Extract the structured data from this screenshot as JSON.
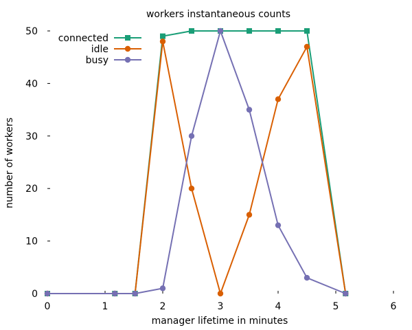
{
  "chart_data": {
    "type": "line",
    "title": "workers instantaneous counts",
    "xlabel": "manager lifetime in minutes",
    "ylabel": "number of workers",
    "xlim": [
      0,
      6
    ],
    "ylim": [
      0,
      50
    ],
    "xticks": [
      0,
      1,
      2,
      3,
      4,
      5,
      6
    ],
    "yticks": [
      0,
      10,
      20,
      30,
      40,
      50
    ],
    "grid": false,
    "legend_position": "top-left",
    "series": [
      {
        "name": "connected",
        "color": "#1a9e77",
        "marker": "square",
        "x": [
          0,
          1.17,
          1.52,
          2.0,
          2.5,
          3.0,
          3.5,
          4.0,
          4.5,
          5.17
        ],
        "y": [
          0,
          0,
          0,
          49,
          50,
          50,
          50,
          50,
          50,
          0
        ]
      },
      {
        "name": "idle",
        "color": "#d95f02",
        "marker": "circle",
        "x": [
          0,
          1.17,
          1.52,
          2.0,
          2.5,
          3.0,
          3.5,
          4.0,
          4.5,
          5.17
        ],
        "y": [
          0,
          0,
          0,
          48,
          20,
          0,
          15,
          37,
          47,
          0
        ]
      },
      {
        "name": "busy",
        "color": "#7570b3",
        "marker": "circle",
        "x": [
          0,
          1.17,
          1.52,
          2.0,
          2.5,
          3.0,
          3.5,
          4.0,
          4.5,
          5.17
        ],
        "y": [
          0,
          0,
          0,
          1,
          30,
          50,
          35,
          13,
          3,
          0
        ]
      }
    ]
  }
}
